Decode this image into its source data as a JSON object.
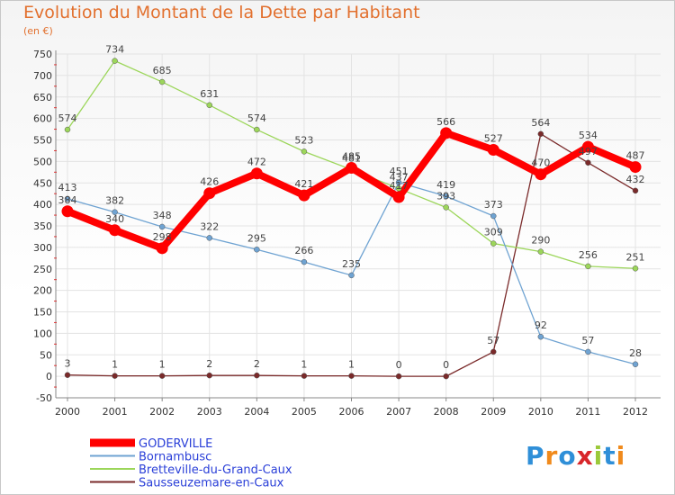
{
  "title": "Evolution du Montant de la Dette par Habitant",
  "unit": "(en €)",
  "logo": "Proxiti",
  "chart_data": {
    "type": "line",
    "title": "Evolution du Montant de la Dette par Habitant",
    "ylabel": "(en €)",
    "xlabel": "",
    "x": [
      "2000",
      "2001",
      "2002",
      "2003",
      "2004",
      "2005",
      "2006",
      "2007",
      "2008",
      "2009",
      "2010",
      "2011",
      "2012"
    ],
    "ylim": [
      -50,
      750
    ],
    "yticks": [
      -50,
      0,
      50,
      100,
      150,
      200,
      250,
      300,
      350,
      400,
      450,
      500,
      550,
      600,
      650,
      700,
      750
    ],
    "grid": true,
    "legend": "bottom",
    "series": [
      {
        "name": "GODERVILLE",
        "color": "#ff0000",
        "values": [
          384,
          340,
          298,
          426,
          472,
          421,
          485,
          417,
          566,
          527,
          470,
          534,
          487
        ]
      },
      {
        "name": "Bornambusc",
        "color": "#6fa3d2",
        "values": [
          413,
          382,
          348,
          322,
          295,
          266,
          235,
          451,
          419,
          373,
          92,
          57,
          28
        ]
      },
      {
        "name": "Bretteville-du-Grand-Caux",
        "color": "#9cd65a",
        "values": [
          574,
          734,
          685,
          631,
          574,
          523,
          481,
          437,
          393,
          309,
          290,
          256,
          251
        ]
      },
      {
        "name": "Sausseuzemare-en-Caux",
        "color": "#7a2a2a",
        "values": [
          3,
          1,
          1,
          2,
          2,
          1,
          1,
          0,
          0,
          57,
          564,
          497,
          432
        ]
      }
    ]
  }
}
